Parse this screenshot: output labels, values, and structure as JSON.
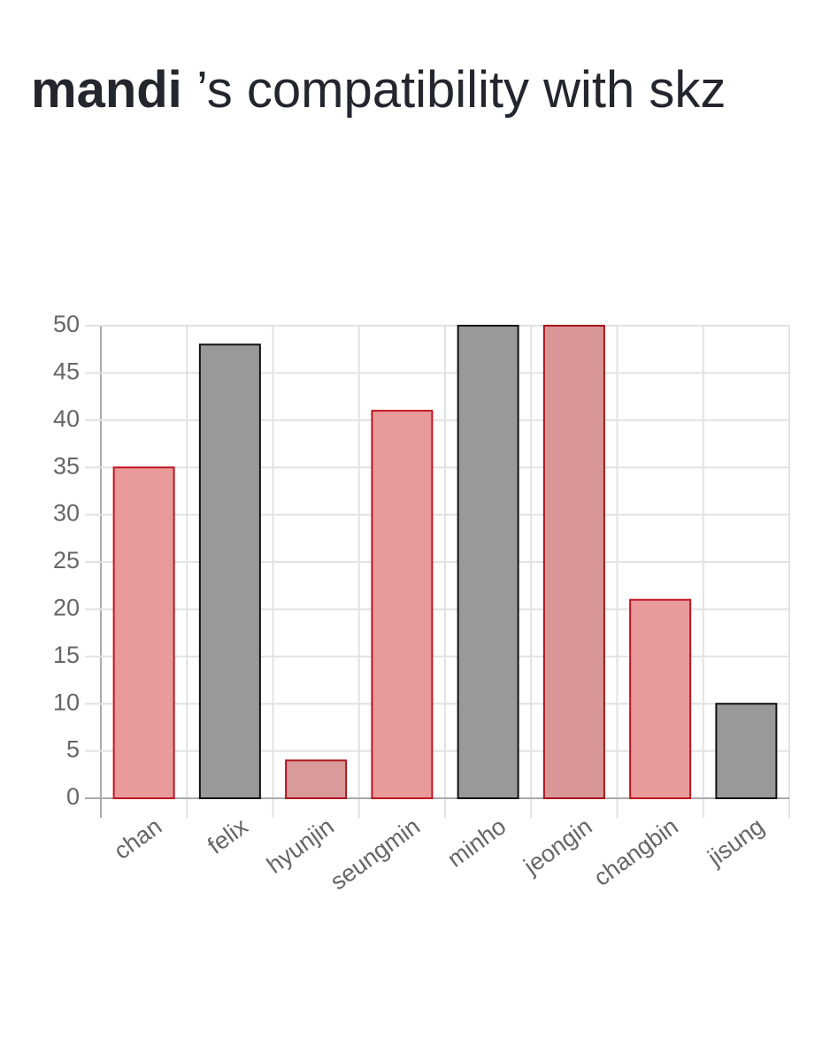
{
  "chart_data": {
    "type": "bar",
    "name": "mandi",
    "title": "’s compatibility with skz",
    "categories": [
      "chan",
      "felix",
      "hyunjin",
      "seungmin",
      "minho",
      "jeongin",
      "changbin",
      "jisung"
    ],
    "values": [
      35,
      48,
      4,
      41,
      50,
      50,
      21,
      10
    ],
    "colors": [
      "#e99a9b",
      "#999999",
      "#d99a9a",
      "#e99a9b",
      "#999999",
      "#d99696",
      "#e99a9b",
      "#999999"
    ],
    "border_colors": [
      "#c0161f",
      "#111111",
      "#b0151d",
      "#c0161f",
      "#111111",
      "#a8121a",
      "#c0161f",
      "#111111"
    ],
    "ylim": [
      0,
      50
    ],
    "yticks": [
      0,
      5,
      10,
      15,
      20,
      25,
      30,
      35,
      40,
      45,
      50
    ],
    "grid": true
  }
}
